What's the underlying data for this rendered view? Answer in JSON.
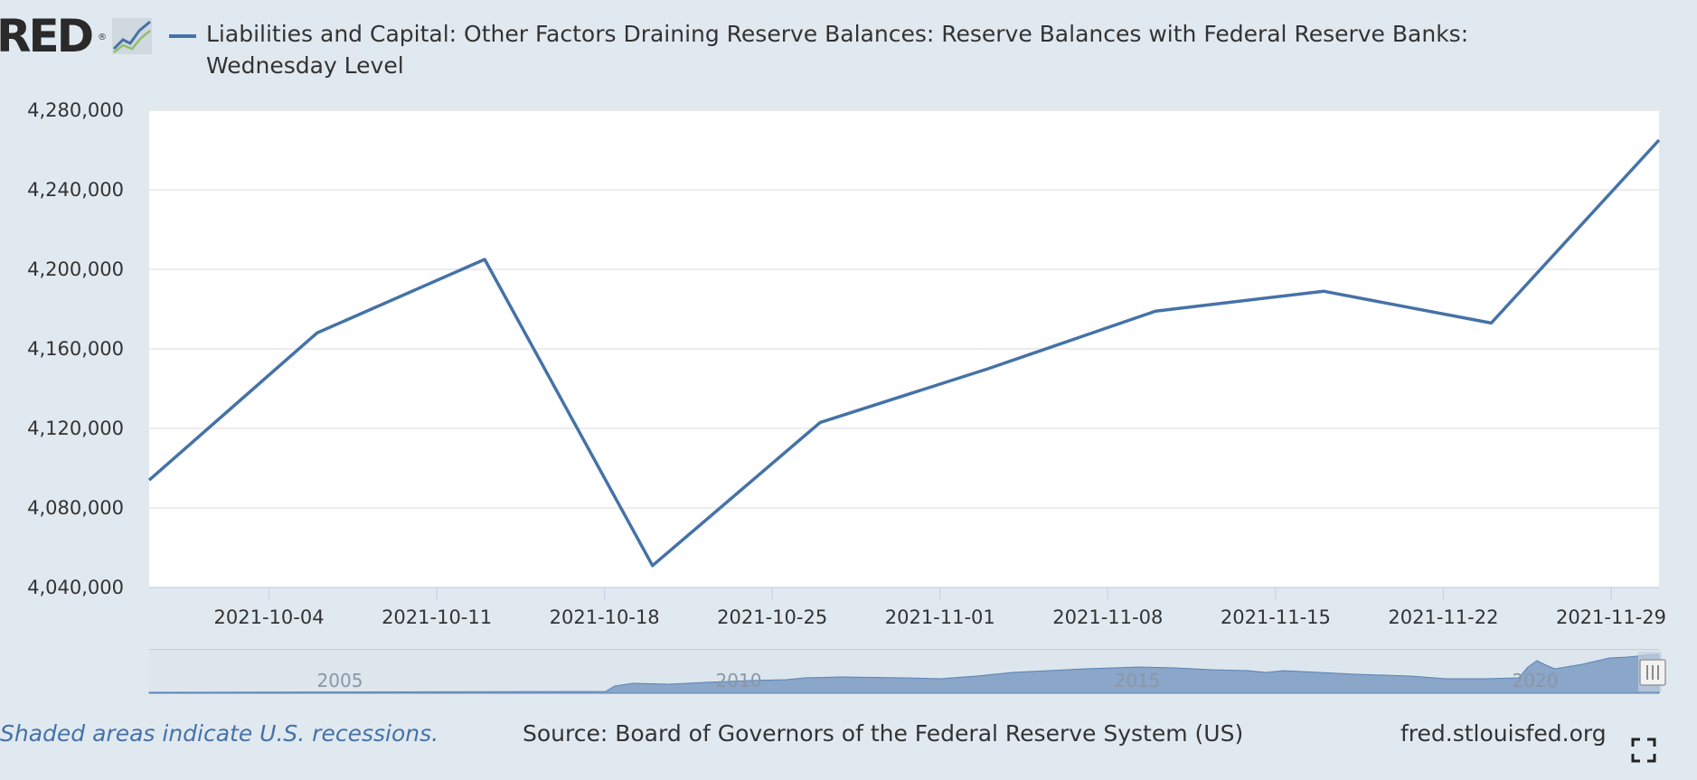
{
  "logo": {
    "text": "RED",
    "reg": "®"
  },
  "icons": {
    "logo_graph": "fred-graph-logo-icon",
    "fullscreen": "fullscreen-icon"
  },
  "colors": {
    "series": "#4572a7",
    "background": "#e1e9f0",
    "plot_bg": "#ffffff",
    "navigator_fill": "#8aa6c9"
  },
  "footer": {
    "recessions": "Shaded areas indicate U.S. recessions.",
    "source": "Source: Board of Governors of the Federal Reserve System (US)",
    "site": "fred.stlouisfed.org"
  },
  "navigator": {
    "labels": [
      "2005",
      "2010",
      "2015",
      "2020"
    ]
  },
  "chart_data": {
    "type": "line",
    "title": "Liabilities and Capital: Other Factors Draining Reserve Balances: Reserve Balances with Federal Reserve Banks: Wednesday Level",
    "xlabel": "",
    "ylabel": "",
    "legend": "top-left",
    "grid": true,
    "ylim": [
      4040000,
      4280000
    ],
    "yticks": [
      "4,040,000",
      "4,080,000",
      "4,120,000",
      "4,160,000",
      "4,200,000",
      "4,240,000",
      "4,280,000"
    ],
    "yticks_values": [
      4040000,
      4080000,
      4120000,
      4160000,
      4200000,
      4240000,
      4280000
    ],
    "xticks": [
      "2021-10-04",
      "2021-10-11",
      "2021-10-18",
      "2021-10-25",
      "2021-11-01",
      "2021-11-08",
      "2021-11-15",
      "2021-11-22",
      "2021-11-29"
    ],
    "xlim": [
      "2021-09-29",
      "2021-12-01"
    ],
    "series": [
      {
        "name": "Liabilities and Capital: Other Factors Draining Reserve Balances: Reserve Balances with Federal Reserve Banks: Wednesday Level",
        "x": [
          "2021-09-29",
          "2021-10-06",
          "2021-10-13",
          "2021-10-20",
          "2021-10-27",
          "2021-11-03",
          "2021-11-10",
          "2021-11-17",
          "2021-11-24",
          "2021-12-01"
        ],
        "values": [
          4094000,
          4168000,
          4205000,
          4051000,
          4123000,
          4150000,
          4179000,
          4189000,
          4173000,
          4265000
        ]
      }
    ]
  }
}
